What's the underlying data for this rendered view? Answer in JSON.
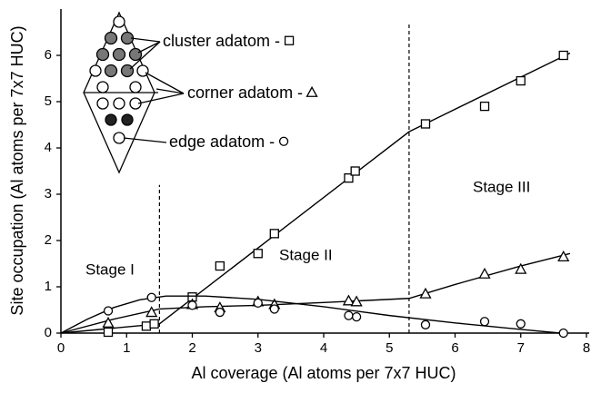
{
  "chart_data": {
    "type": "scatter",
    "xlabel": "Al coverage (Al atoms per 7x7 HUC)",
    "ylabel": "Site occupation (Al atoms per 7x7 HUC)",
    "xlim": [
      0,
      8
    ],
    "xticks": [
      0,
      1,
      2,
      3,
      4,
      5,
      6,
      7,
      8
    ],
    "ylim": [
      0,
      7
    ],
    "yticks": [
      0,
      1,
      2,
      3,
      4,
      5,
      6
    ],
    "annotations": [
      "Stage I",
      "Stage II",
      "Stage III"
    ],
    "stage_lines": [
      {
        "x": 1.5,
        "y_top": 3.2
      },
      {
        "x": 5.3,
        "y_top": 6.7
      }
    ],
    "series": [
      {
        "name": "cluster adatom -",
        "marker": "square",
        "color": "#000000",
        "x": [
          0.72,
          1.3,
          1.42,
          2.0,
          2.42,
          3.0,
          3.25,
          4.38,
          4.48,
          5.55,
          6.45,
          7.0,
          7.65
        ],
        "values": [
          0.02,
          0.15,
          0.2,
          0.78,
          1.45,
          1.72,
          2.15,
          3.35,
          3.5,
          4.52,
          4.9,
          5.45,
          6.0
        ],
        "fit": {
          "x": [
            0,
            1.5,
            5.3,
            7.75
          ],
          "y": [
            0,
            0.2,
            4.35,
            6.05
          ]
        }
      },
      {
        "name": "corner adatom -",
        "marker": "triangle",
        "color": "#000000",
        "x": [
          0.72,
          1.38,
          2.0,
          2.42,
          3.0,
          3.25,
          4.38,
          4.5,
          5.55,
          6.45,
          7.0,
          7.65
        ],
        "values": [
          0.22,
          0.45,
          0.62,
          0.55,
          0.68,
          0.62,
          0.7,
          0.68,
          0.85,
          1.28,
          1.38,
          1.65
        ],
        "fit": {
          "x": [
            0,
            0.8,
            1.5,
            2.2,
            3,
            4,
            5.3,
            6,
            7,
            7.75
          ],
          "y": [
            0,
            0.3,
            0.52,
            0.57,
            0.6,
            0.66,
            0.75,
            1.05,
            1.45,
            1.72
          ]
        }
      },
      {
        "name": "edge adatom -",
        "marker": "circle",
        "color": "#000000",
        "x": [
          0.72,
          1.38,
          2.0,
          2.42,
          3.0,
          3.25,
          4.38,
          4.5,
          5.55,
          6.45,
          7.0,
          7.65
        ],
        "values": [
          0.48,
          0.77,
          0.6,
          0.45,
          0.65,
          0.52,
          0.38,
          0.35,
          0.18,
          0.25,
          0.2,
          0.0
        ],
        "fit": {
          "x": [
            0,
            0.4,
            0.8,
            1.2,
            1.6,
            2.2,
            3,
            4,
            5,
            6,
            7,
            7.6
          ],
          "y": [
            0,
            0.3,
            0.55,
            0.72,
            0.8,
            0.8,
            0.73,
            0.57,
            0.38,
            0.22,
            0.08,
            0
          ]
        }
      }
    ]
  }
}
